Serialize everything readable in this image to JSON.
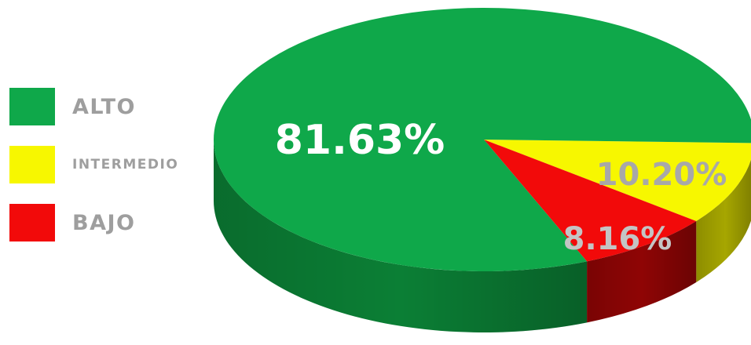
{
  "chart_data": {
    "type": "pie",
    "title": "",
    "slices": [
      {
        "label": "ALTO",
        "value": 81.63,
        "display": "81.63%",
        "color": "#0fa84a",
        "side_color": "#0b7f35",
        "label_color": "#ffffff"
      },
      {
        "label": "INTERMEDIO",
        "value": 10.2,
        "display": "10.20%",
        "color": "#f7f700",
        "side_color": "#a6a600",
        "label_color": "#a8a8a8"
      },
      {
        "label": "BAJO",
        "value": 8.16,
        "display": "8.16%",
        "color": "#f20a0a",
        "side_color": "#8f0505",
        "label_color": "#c4c4c4"
      }
    ],
    "legend_position": "left",
    "style": "3d"
  }
}
